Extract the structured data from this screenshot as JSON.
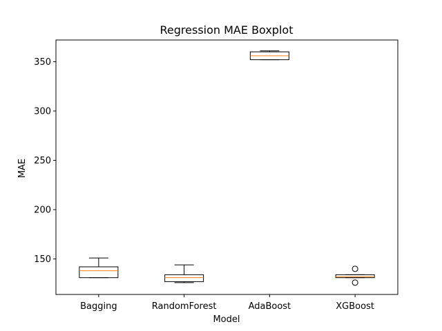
{
  "chart_data": {
    "type": "boxplot",
    "title": "Regression MAE Boxplot",
    "xlabel": "Model",
    "ylabel": "MAE",
    "ylim": [
      114,
      372
    ],
    "yticks": [
      150,
      200,
      250,
      300,
      350
    ],
    "grid": false,
    "categories": [
      "Bagging",
      "RandomForest",
      "AdaBoost",
      "XGBoost"
    ],
    "boxes": [
      {
        "whisker_low": 131,
        "q1": 131,
        "median": 138,
        "q3": 142,
        "whisker_high": 151,
        "outliers": []
      },
      {
        "whisker_low": 126,
        "q1": 127,
        "median": 131,
        "q3": 134,
        "whisker_high": 144,
        "outliers": []
      },
      {
        "whisker_low": 352,
        "q1": 352,
        "median": 356,
        "q3": 360,
        "whisker_high": 361,
        "outliers": []
      },
      {
        "whisker_low": 131,
        "q1": 131,
        "median": 132,
        "q3": 134,
        "whisker_high": 134,
        "outliers": [
          140,
          126
        ]
      }
    ],
    "colors": {
      "box": "#000000",
      "median": "#ff7f0e",
      "flier": "#000000"
    }
  }
}
